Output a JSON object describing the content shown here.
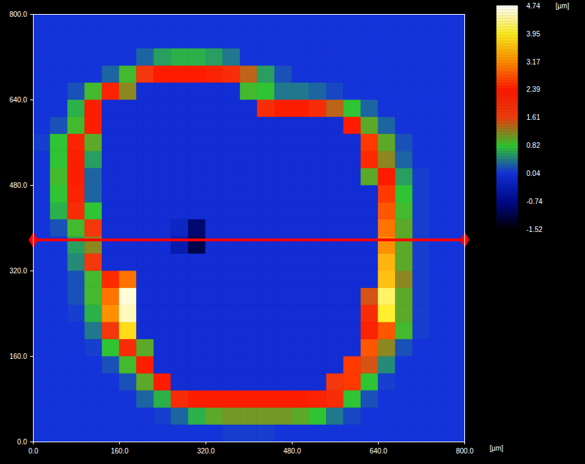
{
  "chart_data": {
    "type": "heatmap",
    "xlim": [
      0,
      800
    ],
    "ylim": [
      0,
      800
    ],
    "xticks": [
      {
        "value": 0,
        "label": "0.0"
      },
      {
        "value": 160,
        "label": "160.0"
      },
      {
        "value": 320,
        "label": "320.0"
      },
      {
        "value": 480,
        "label": "480.0"
      },
      {
        "value": 640,
        "label": "640.0"
      },
      {
        "value": 800,
        "label": "800.0"
      }
    ],
    "yticks": [
      {
        "value": 0,
        "label": "0.0"
      },
      {
        "value": 160,
        "label": "160.0"
      },
      {
        "value": 320,
        "label": "320.0"
      },
      {
        "value": 480,
        "label": "480.0"
      },
      {
        "value": 640,
        "label": "640.0"
      },
      {
        "value": 800,
        "label": "800.0"
      }
    ],
    "xlabel": "[µm]",
    "colorbar": {
      "range": [
        -1.52,
        4.74
      ],
      "ticks": [
        -1.52,
        -0.74,
        0.04,
        0.82,
        1.61,
        2.39,
        3.17,
        3.95,
        4.74
      ],
      "colors": [
        "#000000",
        "#000a8c",
        "#1432dc",
        "#30c830",
        "#f04010",
        "#ff1a00",
        "#ff8c00",
        "#ffee20",
        "#ffffff"
      ],
      "label": "[µm]"
    },
    "profile": {
      "x": [
        0,
        800
      ],
      "y": [
        378,
        378
      ],
      "color": "#ff0000",
      "marker": "diamond"
    },
    "cells": {
      "x": [
        16,
        48,
        80,
        112,
        144,
        176,
        208,
        240,
        272,
        304,
        336,
        368,
        400,
        432,
        464,
        496,
        528,
        560,
        592,
        624,
        656,
        688,
        720,
        752,
        784
      ],
      "y": [
        16,
        48,
        80,
        112,
        144,
        176,
        208,
        240,
        272,
        304,
        336,
        368,
        400,
        432,
        464,
        496,
        528,
        560,
        592,
        624,
        656,
        688,
        720,
        752,
        784
      ],
      "z": [
        [
          0.05,
          0.05,
          0.05,
          0.05,
          0.05,
          0.05,
          0.05,
          0.05,
          0.05,
          0.05,
          0.05,
          0.1,
          0.1,
          0.1,
          0.05,
          0.05,
          0.05,
          0.05,
          0.05,
          0.05,
          0.05,
          0.05,
          0.05,
          0.05,
          0.05
        ],
        [
          0.05,
          0.05,
          0.05,
          0.05,
          0.05,
          0.05,
          0.05,
          0.1,
          0.3,
          0.7,
          1.0,
          1.1,
          1.1,
          1.1,
          1.1,
          1.0,
          0.8,
          0.4,
          0.15,
          0.05,
          0.05,
          0.05,
          0.05,
          0.05,
          0.05
        ],
        [
          0.05,
          0.05,
          0.05,
          0.05,
          0.05,
          0.05,
          0.3,
          0.7,
          2.0,
          2.3,
          2.3,
          2.3,
          2.3,
          2.3,
          2.3,
          2.3,
          2.2,
          2.0,
          0.8,
          0.2,
          0.05,
          0.05,
          0.05,
          0.05,
          0.05
        ],
        [
          0.05,
          0.05,
          0.05,
          0.05,
          0.05,
          0.2,
          1.0,
          2.4,
          -0.05,
          -0.05,
          -0.05,
          -0.05,
          -0.05,
          -0.05,
          -0.05,
          -0.05,
          -0.05,
          1.8,
          2.6,
          0.8,
          0.1,
          0.05,
          0.05,
          0.05,
          0.05
        ],
        [
          0.05,
          0.05,
          0.05,
          0.05,
          0.2,
          0.9,
          2.3,
          -0.05,
          -0.05,
          -0.05,
          -0.05,
          -0.05,
          -0.05,
          -0.05,
          -0.05,
          -0.05,
          -0.05,
          -0.05,
          2.6,
          1.5,
          0.5,
          0.05,
          0.05,
          0.05,
          0.05
        ],
        [
          0.05,
          0.05,
          0.05,
          0.1,
          0.8,
          2.0,
          1.0,
          -0.05,
          -0.05,
          -0.05,
          -0.05,
          -0.05,
          -0.05,
          -0.05,
          -0.05,
          -0.05,
          -0.05,
          -0.05,
          -0.05,
          2.8,
          1.2,
          0.2,
          0.05,
          0.05,
          0.05
        ],
        [
          0.05,
          0.05,
          0.05,
          0.4,
          1.8,
          3.8,
          -0.05,
          -0.05,
          -0.05,
          -0.05,
          -0.05,
          -0.05,
          -0.05,
          -0.05,
          -0.05,
          -0.05,
          -0.05,
          -0.05,
          -0.05,
          2.2,
          2.8,
          0.9,
          0.1,
          0.05,
          0.05
        ],
        [
          0.05,
          0.05,
          0.1,
          0.7,
          3.2,
          4.5,
          -0.05,
          -0.05,
          -0.05,
          -0.05,
          -0.05,
          -0.05,
          -0.05,
          -0.05,
          -0.05,
          -0.05,
          -0.05,
          -0.05,
          -0.05,
          2.0,
          4.0,
          1.0,
          0.1,
          0.05,
          0.05
        ],
        [
          0.05,
          0.05,
          0.2,
          0.9,
          3.0,
          4.6,
          -0.05,
          -0.05,
          -0.05,
          -0.05,
          -0.05,
          -0.05,
          -0.05,
          -0.05,
          -0.05,
          -0.05,
          -0.05,
          -0.05,
          -0.05,
          1.5,
          4.2,
          1.0,
          0.1,
          0.05,
          0.05
        ],
        [
          0.05,
          0.05,
          0.2,
          0.9,
          2.5,
          3.0,
          -0.05,
          -0.05,
          -0.05,
          -0.05,
          -0.05,
          -0.05,
          -0.05,
          -0.05,
          -0.05,
          -0.05,
          -0.05,
          -0.05,
          -0.05,
          -0.05,
          3.6,
          1.2,
          0.1,
          0.05,
          0.05
        ],
        [
          0.05,
          0.05,
          0.5,
          1.8,
          -0.05,
          -0.05,
          -0.05,
          -0.05,
          -0.05,
          -0.05,
          -0.05,
          -0.05,
          -0.05,
          -0.05,
          -0.05,
          -0.05,
          -0.05,
          -0.05,
          -0.05,
          -0.05,
          3.5,
          1.0,
          0.1,
          0.05,
          0.05
        ],
        [
          0.05,
          0.05,
          0.6,
          1.2,
          -0.05,
          -0.05,
          -0.05,
          -0.05,
          -0.4,
          -1.1,
          -0.05,
          -0.05,
          -0.05,
          -0.05,
          -0.05,
          -0.05,
          -0.05,
          -0.05,
          -0.05,
          -0.05,
          3.2,
          1.0,
          0.1,
          0.05,
          0.05
        ],
        [
          0.05,
          0.2,
          0.9,
          1.8,
          -0.05,
          -0.05,
          -0.05,
          -0.05,
          -0.2,
          -0.9,
          -0.05,
          -0.05,
          -0.05,
          -0.05,
          -0.05,
          -0.05,
          -0.05,
          -0.05,
          -0.05,
          -0.05,
          3.0,
          1.0,
          0.1,
          0.05,
          0.05
        ],
        [
          0.05,
          0.7,
          2.0,
          0.8,
          -0.05,
          -0.05,
          -0.05,
          -0.05,
          -0.05,
          -0.05,
          -0.05,
          -0.05,
          -0.05,
          -0.05,
          -0.05,
          -0.05,
          -0.05,
          -0.05,
          -0.05,
          -0.05,
          2.8,
          0.9,
          0.1,
          0.05,
          0.05
        ],
        [
          0.05,
          0.8,
          2.2,
          0.3,
          -0.05,
          -0.05,
          -0.05,
          -0.05,
          -0.05,
          -0.05,
          -0.05,
          -0.05,
          -0.05,
          -0.05,
          -0.05,
          -0.05,
          -0.05,
          -0.05,
          -0.05,
          -0.05,
          2.6,
          0.8,
          0.1,
          0.05,
          0.05
        ],
        [
          0.05,
          0.9,
          2.3,
          0.3,
          -0.05,
          -0.05,
          -0.05,
          -0.05,
          -0.05,
          -0.05,
          -0.05,
          -0.05,
          -0.05,
          -0.05,
          -0.05,
          -0.05,
          -0.05,
          -0.05,
          -0.05,
          1.0,
          2.4,
          0.6,
          0.1,
          0.05,
          0.05
        ],
        [
          0.05,
          0.8,
          2.3,
          0.6,
          -0.05,
          -0.05,
          -0.05,
          -0.05,
          -0.05,
          -0.05,
          -0.05,
          -0.05,
          -0.05,
          -0.05,
          -0.05,
          -0.05,
          -0.05,
          -0.05,
          -0.05,
          2.5,
          1.2,
          0.3,
          0.05,
          0.05,
          0.05
        ],
        [
          0.1,
          0.8,
          2.2,
          1.0,
          -0.05,
          -0.05,
          -0.05,
          -0.05,
          -0.05,
          -0.05,
          -0.05,
          -0.05,
          -0.05,
          -0.05,
          -0.05,
          -0.05,
          -0.05,
          -0.05,
          -0.05,
          2.6,
          1.0,
          0.2,
          0.05,
          0.05,
          0.05
        ],
        [
          0.05,
          0.2,
          0.9,
          2.3,
          -0.05,
          -0.05,
          -0.05,
          -0.05,
          -0.05,
          -0.05,
          -0.05,
          -0.05,
          -0.05,
          -0.05,
          -0.05,
          -0.05,
          -0.05,
          -0.05,
          2.4,
          1.0,
          0.3,
          0.05,
          0.05,
          0.05,
          0.05
        ],
        [
          0.05,
          0.05,
          0.7,
          2.3,
          -0.05,
          -0.05,
          -0.05,
          -0.05,
          -0.05,
          -0.05,
          -0.05,
          -0.05,
          -0.05,
          2.0,
          2.3,
          2.3,
          2.0,
          1.4,
          0.8,
          0.3,
          0.05,
          0.05,
          0.05,
          0.05,
          0.05
        ],
        [
          0.05,
          0.05,
          0.2,
          0.9,
          2.2,
          1.2,
          -0.05,
          -0.05,
          -0.05,
          -0.05,
          -0.05,
          -0.05,
          0.9,
          0.8,
          0.4,
          0.4,
          0.3,
          0.15,
          0.05,
          0.05,
          0.05,
          0.05,
          0.05,
          0.05,
          0.05
        ],
        [
          0.05,
          0.05,
          0.05,
          0.05,
          0.3,
          0.9,
          1.8,
          2.4,
          2.4,
          2.4,
          2.2,
          2.0,
          1.4,
          0.6,
          0.2,
          0.05,
          0.05,
          0.05,
          0.05,
          0.05,
          0.05,
          0.05,
          0.05,
          0.05,
          0.05
        ],
        [
          0.05,
          0.05,
          0.05,
          0.05,
          0.05,
          0.05,
          0.3,
          0.6,
          0.7,
          0.7,
          0.6,
          0.4,
          0.05,
          0.05,
          0.05,
          0.05,
          0.05,
          0.05,
          0.05,
          0.05,
          0.05,
          0.05,
          0.05,
          0.05,
          0.05
        ],
        [
          0.05,
          0.05,
          0.05,
          0.05,
          0.05,
          0.05,
          0.05,
          0.05,
          0.05,
          0.05,
          0.05,
          0.05,
          0.05,
          0.05,
          0.05,
          0.05,
          0.05,
          0.05,
          0.05,
          0.05,
          0.05,
          0.05,
          0.05,
          0.05,
          0.05
        ],
        [
          0.05,
          0.05,
          0.05,
          0.05,
          0.05,
          0.05,
          0.05,
          0.05,
          0.05,
          0.05,
          0.05,
          0.05,
          0.05,
          0.05,
          0.05,
          0.05,
          0.05,
          0.05,
          0.05,
          0.05,
          0.05,
          0.05,
          0.05,
          0.05,
          0.05
        ]
      ]
    }
  }
}
